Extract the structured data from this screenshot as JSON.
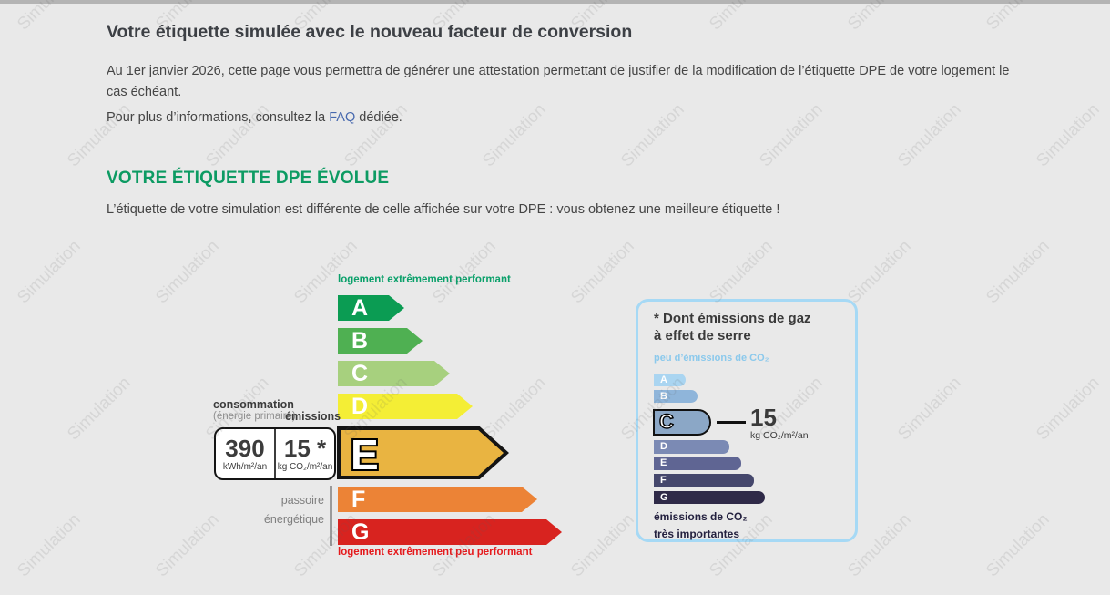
{
  "page": {
    "title": "Votre étiquette simulée avec le nouveau facteur de conversion",
    "intro": "Au 1er janvier 2026, cette page vous permettra de générer une attestation permettant de justifier de la modification de l’étiquette DPE de votre logement le cas échéant.",
    "info_prefix": "Pour plus d’informations, consultez la ",
    "faq_link": "FAQ",
    "info_suffix": " dédiée.",
    "section_title": "VOTRE ÉTIQUETTE DPE ÉVOLUE",
    "section_text": "L’étiquette de votre simulation est différente de celle affichée sur votre DPE : vous obtenez une meilleure étiquette !",
    "watermark": "Simulation"
  },
  "dpe": {
    "top_caption": "logement extrêmement performant",
    "bottom_caption": "logement extrêmement peu performant",
    "conso_label": "consommation",
    "conso_sublabel": "(énergie primaire)",
    "emissions_label": "émissions",
    "conso_value": "390",
    "conso_unit": "kWh/m²/an",
    "emission_value": "15 *",
    "emission_unit": "kg CO₂/m²/an",
    "passoire_line1": "passoire",
    "passoire_line2": "énergétique",
    "current_grade": "E",
    "grades": [
      {
        "letter": "A",
        "color": "#0b9c53"
      },
      {
        "letter": "B",
        "color": "#4fb052"
      },
      {
        "letter": "C",
        "color": "#a7d07e"
      },
      {
        "letter": "D",
        "color": "#f4ee35"
      },
      {
        "letter": "E",
        "color": "#e9b441"
      },
      {
        "letter": "F",
        "color": "#ec8336"
      },
      {
        "letter": "G",
        "color": "#d8231f"
      }
    ]
  },
  "ges": {
    "title_line1": "* Dont émissions de gaz",
    "title_line2": "à effet de serre",
    "low_caption": "peu d’émissions de CO₂",
    "high_caption_line1": "émissions de CO₂",
    "high_caption_line2": "très importantes",
    "value": "15",
    "unit": "kg CO₂/m²/an",
    "current_grade": "C",
    "grades": [
      {
        "letter": "A",
        "color": "#aad5f1"
      },
      {
        "letter": "B",
        "color": "#8fb5da"
      },
      {
        "letter": "C",
        "color": "#8ba7c6"
      },
      {
        "letter": "D",
        "color": "#7b8ab4"
      },
      {
        "letter": "E",
        "color": "#5f6593"
      },
      {
        "letter": "F",
        "color": "#45476c"
      },
      {
        "letter": "G",
        "color": "#2f2a48"
      }
    ]
  },
  "colors": {
    "background": "#e9e9e9",
    "top_border": "#b4b4b4",
    "heading_green": "#0d9b63",
    "link_blue": "#4668ae",
    "ges_border": "#a6d9f5",
    "caption_green": "#0aa06a",
    "caption_red": "#e51a1d"
  }
}
